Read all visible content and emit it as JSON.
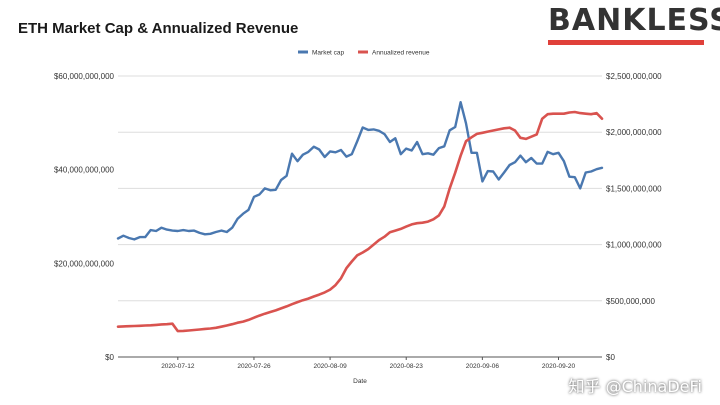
{
  "brand": {
    "name": "BANKLESS",
    "accent": "#e0403a"
  },
  "watermark": "知乎 @ChinaDeFi",
  "chart_data": {
    "type": "line",
    "title": "ETH Market Cap & Annualized Revenue",
    "xlabel": "Date",
    "x_ticks": [
      "2020-07-12",
      "2020-07-26",
      "2020-08-09",
      "2020-08-23",
      "2020-09-06",
      "2020-09-20"
    ],
    "x_range": [
      "2020-07-01",
      "2020-09-28"
    ],
    "legend_position": "top-center",
    "grid": "horizontal",
    "y_left": {
      "range": [
        0,
        60000000000
      ],
      "ticks": [
        0,
        20000000000,
        40000000000,
        60000000000
      ],
      "tick_labels": [
        "$0",
        "$20,000,000,000",
        "$40,000,000,000",
        "$60,000,000,000"
      ]
    },
    "y_right": {
      "range": [
        0,
        2500000000
      ],
      "ticks": [
        0,
        500000000,
        1000000000,
        1500000000,
        2000000000,
        2500000000
      ],
      "tick_labels": [
        "$0",
        "$500,000,000",
        "$1,000,000,000",
        "$1,500,000,000",
        "$2,000,000,000",
        "$2,500,000,000"
      ]
    },
    "dates": [
      "2020-07-01",
      "2020-07-02",
      "2020-07-03",
      "2020-07-04",
      "2020-07-05",
      "2020-07-06",
      "2020-07-07",
      "2020-07-08",
      "2020-07-09",
      "2020-07-10",
      "2020-07-11",
      "2020-07-12",
      "2020-07-13",
      "2020-07-14",
      "2020-07-15",
      "2020-07-16",
      "2020-07-17",
      "2020-07-18",
      "2020-07-19",
      "2020-07-20",
      "2020-07-21",
      "2020-07-22",
      "2020-07-23",
      "2020-07-24",
      "2020-07-25",
      "2020-07-26",
      "2020-07-27",
      "2020-07-28",
      "2020-07-29",
      "2020-07-30",
      "2020-07-31",
      "2020-08-01",
      "2020-08-02",
      "2020-08-03",
      "2020-08-04",
      "2020-08-05",
      "2020-08-06",
      "2020-08-07",
      "2020-08-08",
      "2020-08-09",
      "2020-08-10",
      "2020-08-11",
      "2020-08-12",
      "2020-08-13",
      "2020-08-14",
      "2020-08-15",
      "2020-08-16",
      "2020-08-17",
      "2020-08-18",
      "2020-08-19",
      "2020-08-20",
      "2020-08-21",
      "2020-08-22",
      "2020-08-23",
      "2020-08-24",
      "2020-08-25",
      "2020-08-26",
      "2020-08-27",
      "2020-08-28",
      "2020-08-29",
      "2020-08-30",
      "2020-08-31",
      "2020-09-01",
      "2020-09-02",
      "2020-09-03",
      "2020-09-04",
      "2020-09-05",
      "2020-09-06",
      "2020-09-07",
      "2020-09-08",
      "2020-09-09",
      "2020-09-10",
      "2020-09-11",
      "2020-09-12",
      "2020-09-13",
      "2020-09-14",
      "2020-09-15",
      "2020-09-16",
      "2020-09-17",
      "2020-09-18",
      "2020-09-19",
      "2020-09-20",
      "2020-09-21",
      "2020-09-22",
      "2020-09-23",
      "2020-09-24",
      "2020-09-25",
      "2020-09-26",
      "2020-09-27",
      "2020-09-28"
    ],
    "series": [
      {
        "name": "Market cap",
        "axis": "left",
        "color": "#4a78b0",
        "values": [
          25300000000,
          25900000000,
          25400000000,
          25100000000,
          25600000000,
          25600000000,
          27100000000,
          26900000000,
          27600000000,
          27200000000,
          27000000000,
          26900000000,
          27100000000,
          26900000000,
          27000000000,
          26500000000,
          26200000000,
          26300000000,
          26700000000,
          27000000000,
          26700000000,
          27600000000,
          29500000000,
          30600000000,
          31400000000,
          34200000000,
          34700000000,
          36000000000,
          35600000000,
          35700000000,
          37800000000,
          38700000000,
          43400000000,
          41800000000,
          43200000000,
          43800000000,
          44900000000,
          44300000000,
          42700000000,
          43900000000,
          43700000000,
          44200000000,
          42800000000,
          43300000000,
          46100000000,
          49000000000,
          48500000000,
          48600000000,
          48300000000,
          47600000000,
          45900000000,
          46700000000,
          43300000000,
          44500000000,
          44100000000,
          45900000000,
          43300000000,
          43500000000,
          43200000000,
          44600000000,
          45000000000,
          48400000000,
          49100000000,
          54400000000,
          49900000000,
          43600000000,
          43600000000,
          37500000000,
          39700000000,
          39600000000,
          37900000000,
          39400000000,
          41000000000,
          41600000000,
          43000000000,
          41600000000,
          42500000000,
          41300000000,
          41300000000,
          43800000000,
          43300000000,
          43600000000,
          41800000000,
          38500000000,
          38400000000,
          36000000000,
          39400000000,
          39600000000,
          40100000000,
          40400000000
        ]
      },
      {
        "name": "Annualized revenue",
        "axis": "right",
        "color": "#d9534f",
        "values": [
          270000000,
          272000000,
          274000000,
          276000000,
          278000000,
          280000000,
          282000000,
          286000000,
          290000000,
          292000000,
          296000000,
          230000000,
          232000000,
          236000000,
          240000000,
          245000000,
          250000000,
          254000000,
          260000000,
          270000000,
          280000000,
          292000000,
          305000000,
          315000000,
          330000000,
          350000000,
          368000000,
          385000000,
          400000000,
          415000000,
          432000000,
          450000000,
          470000000,
          488000000,
          505000000,
          520000000,
          538000000,
          555000000,
          575000000,
          600000000,
          640000000,
          700000000,
          790000000,
          850000000,
          905000000,
          930000000,
          960000000,
          1000000000,
          1040000000,
          1070000000,
          1110000000,
          1125000000,
          1140000000,
          1160000000,
          1180000000,
          1190000000,
          1195000000,
          1205000000,
          1225000000,
          1260000000,
          1340000000,
          1500000000,
          1640000000,
          1790000000,
          1920000000,
          1955000000,
          1985000000,
          1995000000,
          2005000000,
          2015000000,
          2025000000,
          2035000000,
          2040000000,
          2015000000,
          1950000000,
          1940000000,
          1960000000,
          1980000000,
          2120000000,
          2160000000,
          2165000000,
          2165000000,
          2165000000,
          2175000000,
          2180000000,
          2170000000,
          2165000000,
          2160000000,
          2170000000,
          2120000000
        ]
      }
    ]
  }
}
